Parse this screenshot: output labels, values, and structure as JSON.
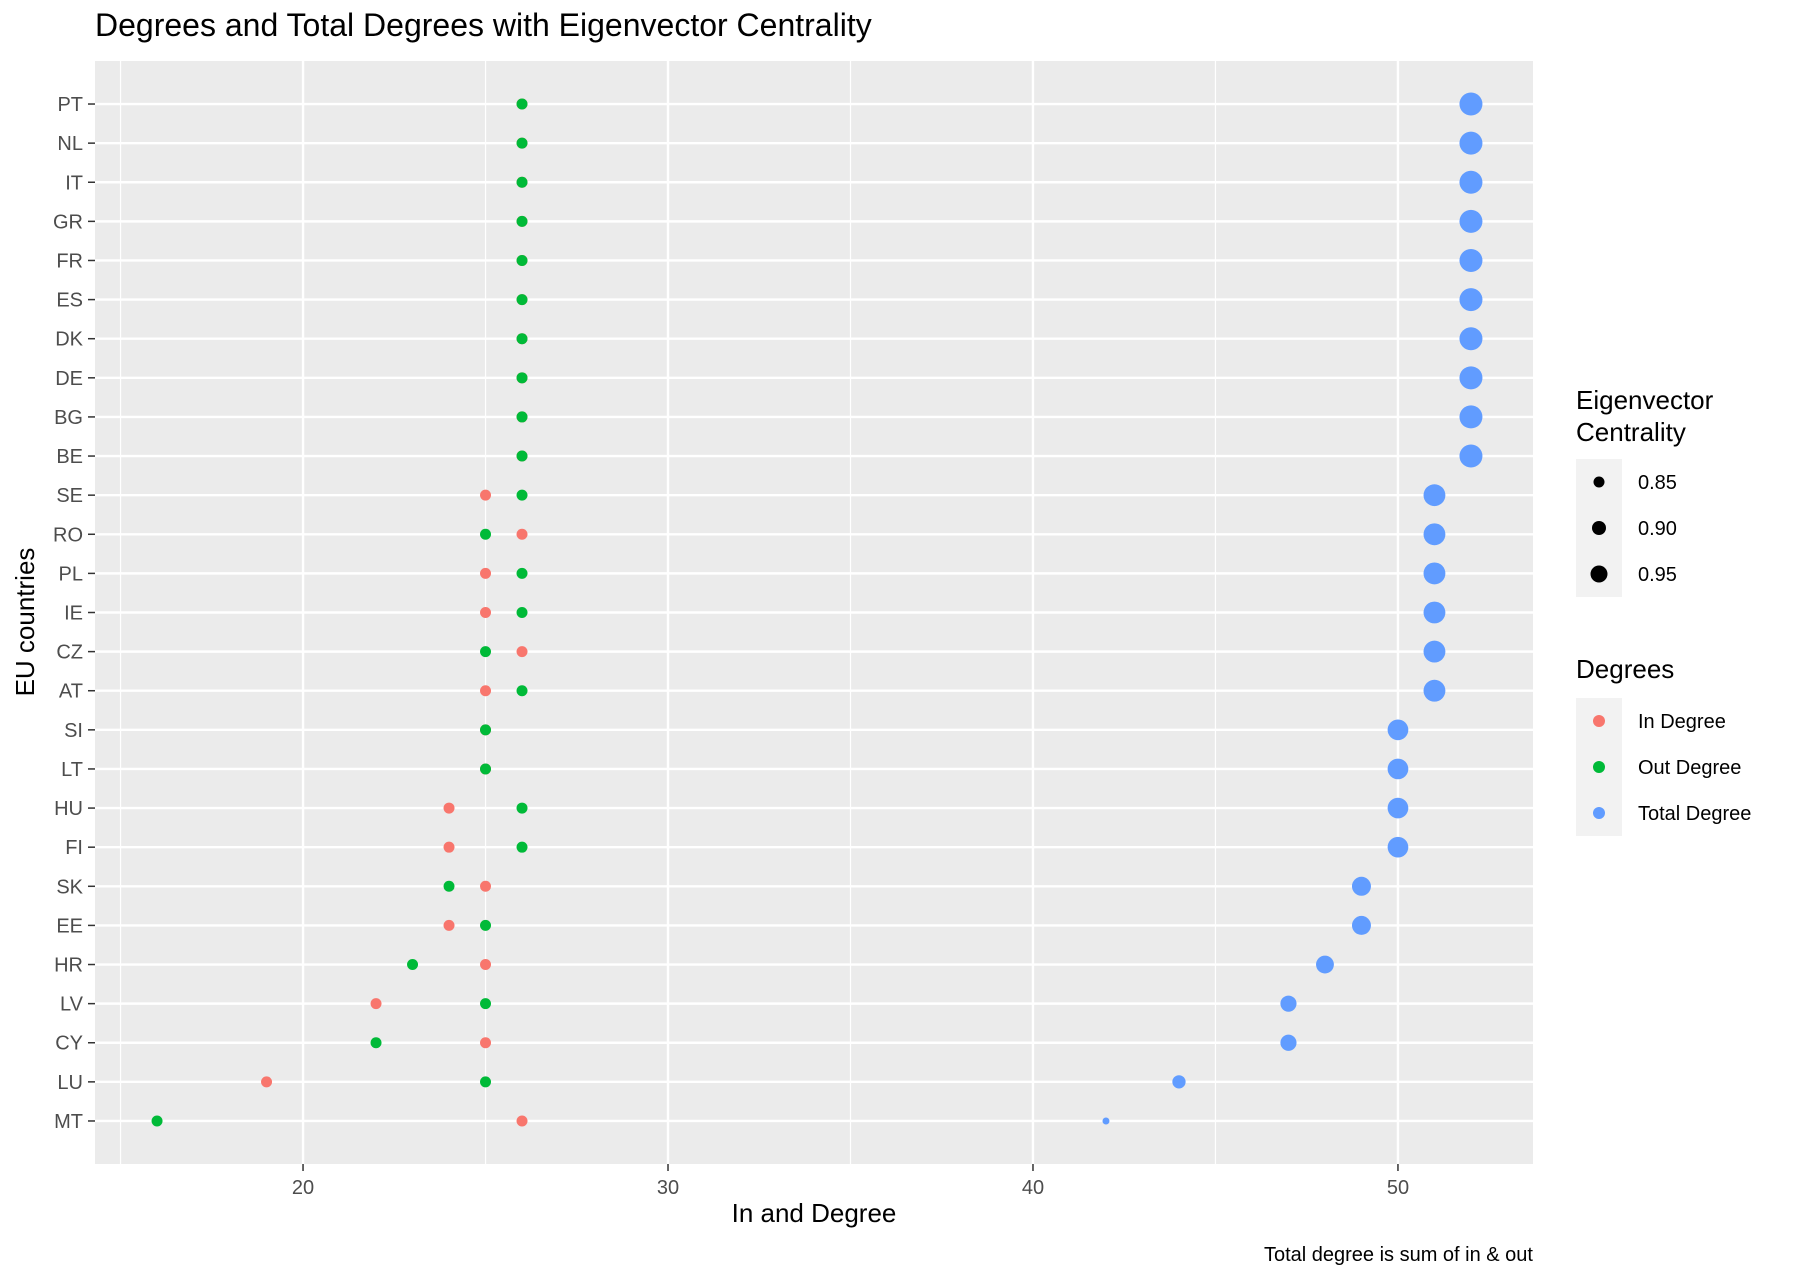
{
  "chart_data": {
    "type": "scatter",
    "title": "Degrees and Total Degrees with Eigenvector Centrality",
    "xlabel": "In and Degree",
    "ylabel": "EU countries",
    "caption": "Total degree is sum of in & out",
    "xlim": [
      14.3,
      53.7
    ],
    "x_ticks": [
      20,
      30,
      40,
      50
    ],
    "grid": true,
    "legend_position": "right",
    "categories": [
      "PT",
      "NL",
      "IT",
      "GR",
      "FR",
      "ES",
      "DK",
      "DE",
      "BG",
      "BE",
      "SE",
      "RO",
      "PL",
      "IE",
      "CZ",
      "AT",
      "SI",
      "LT",
      "HU",
      "FI",
      "SK",
      "EE",
      "HR",
      "LV",
      "CY",
      "LU",
      "MT"
    ],
    "series": [
      {
        "name": "In Degree",
        "color": "#F8766D",
        "values": [
          26,
          26,
          26,
          26,
          26,
          26,
          26,
          26,
          26,
          26,
          25,
          26,
          25,
          25,
          26,
          25,
          25,
          25,
          24,
          24,
          25,
          24,
          25,
          22,
          25,
          19,
          26
        ]
      },
      {
        "name": "Out Degree",
        "color": "#00BA38",
        "values": [
          26,
          26,
          26,
          26,
          26,
          26,
          26,
          26,
          26,
          26,
          26,
          25,
          26,
          26,
          25,
          26,
          25,
          25,
          26,
          26,
          24,
          25,
          23,
          25,
          22,
          25,
          16
        ]
      },
      {
        "name": "Total Degree",
        "color": "#619CFF",
        "values": [
          52,
          52,
          52,
          52,
          52,
          52,
          52,
          52,
          52,
          52,
          51,
          51,
          51,
          51,
          51,
          51,
          50,
          50,
          50,
          50,
          49,
          49,
          48,
          47,
          47,
          44,
          42
        ],
        "eigenvector_centrality": [
          1.0,
          1.0,
          1.0,
          1.0,
          1.0,
          1.0,
          1.0,
          1.0,
          1.0,
          1.0,
          0.98,
          0.98,
          0.98,
          0.98,
          0.98,
          0.98,
          0.96,
          0.96,
          0.96,
          0.96,
          0.93,
          0.93,
          0.91,
          0.88,
          0.88,
          0.83,
          0.72
        ]
      }
    ],
    "size_legend": {
      "title_lines": [
        "Eigenvector",
        "Centrality"
      ],
      "entries": [
        {
          "label": "0.85",
          "value": 0.85
        },
        {
          "label": "0.90",
          "value": 0.9
        },
        {
          "label": "0.95",
          "value": 0.95
        }
      ]
    },
    "color_legend": {
      "title": "Degrees",
      "entries": [
        "In Degree",
        "Out Degree",
        "Total Degree"
      ]
    }
  }
}
